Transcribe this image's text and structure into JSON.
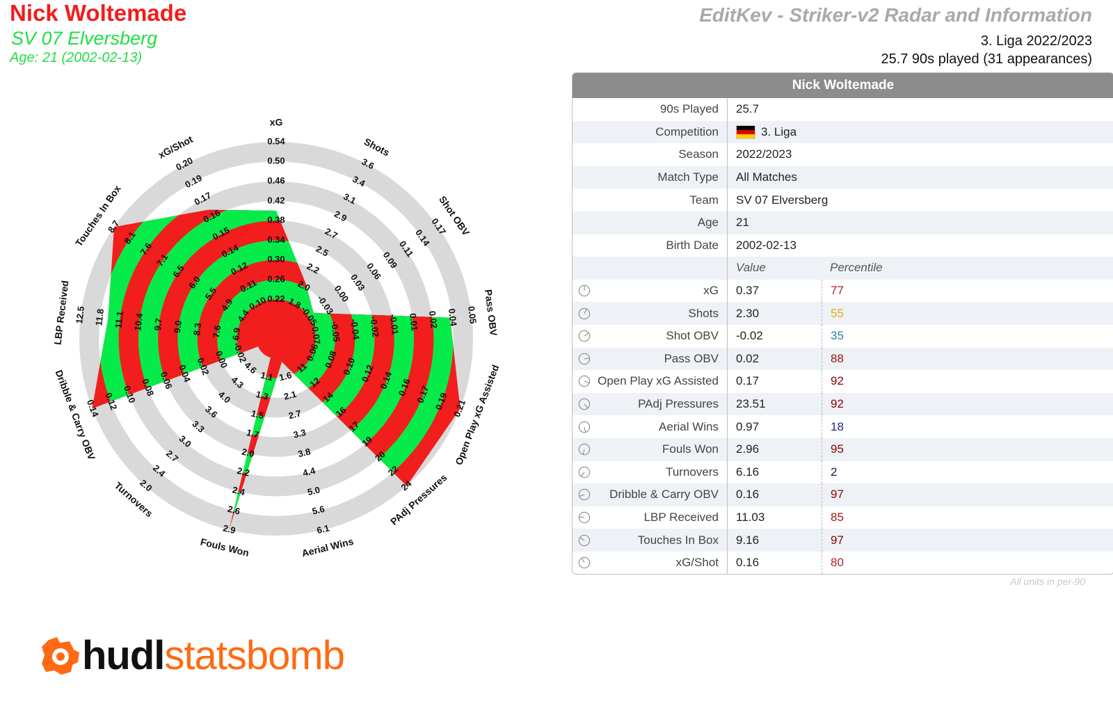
{
  "header": {
    "player_name": "Nick Woltemade",
    "team": "SV 07 Elversberg",
    "age_line": "Age: 21 (2002-02-13)",
    "title": "EditKev - Striker-v2 Radar and Information",
    "league_season": "3. Liga 2022/2023",
    "played": "25.7 90s played (31 appearances)"
  },
  "info": {
    "table_title": "Nick Woltemade",
    "rows": [
      {
        "label": "90s Played",
        "value": "25.7"
      },
      {
        "label": "Competition",
        "value": "3. Liga"
      },
      {
        "label": "Season",
        "value": "2022/2023"
      },
      {
        "label": "Match Type",
        "value": "All Matches"
      },
      {
        "label": "Team",
        "value": "SV 07 Elversberg"
      },
      {
        "label": "Age",
        "value": "21"
      },
      {
        "label": "Birth Date",
        "value": "2002-02-13"
      }
    ],
    "col_value": "Value",
    "col_percentile": "Percentile",
    "units_note": "All units in per-90"
  },
  "colors": {
    "red": "#f21d1d",
    "green": "#05ec4a",
    "ring_grey": "#d9d9d9",
    "flag": [
      "#000000",
      "#dd0000",
      "#ffce00"
    ]
  },
  "chart_data": {
    "type": "radar",
    "metrics": [
      {
        "name": "xG",
        "value": "0.37",
        "percentile": 77,
        "pct_color": "#b22222",
        "ticks": [
          "0.22",
          "0.26",
          "0.30",
          "0.34",
          "0.38",
          "0.42",
          "0.46",
          "0.50",
          "0.54"
        ]
      },
      {
        "name": "Shots",
        "value": "2.30",
        "percentile": 55,
        "pct_color": "#e0b000",
        "ticks": [
          "1.8",
          "2.0",
          "2.2",
          "2.5",
          "2.7",
          "2.9",
          "3.1",
          "3.4",
          "3.6"
        ]
      },
      {
        "name": "Shot OBV",
        "value": "-0.02",
        "percentile": 35,
        "pct_color": "#2a7fa0",
        "ticks": [
          "-0.05",
          "-0.03",
          "0.00",
          "0.03",
          "0.06",
          "0.09",
          "0.11",
          "0.14",
          "0.17"
        ]
      },
      {
        "name": "Pass OBV",
        "value": "0.02",
        "percentile": 88,
        "pct_color": "#9b1111",
        "ticks": [
          "-0.07",
          "-0.05",
          "-0.04",
          "-0.02",
          "-0.01",
          "0.01",
          "0.02",
          "0.04",
          "0.05"
        ]
      },
      {
        "name": "Open Play xG Assisted",
        "value": "0.17",
        "percentile": 92,
        "pct_color": "#8b0000",
        "ticks": [
          "0.06",
          "0.08",
          "0.10",
          "0.12",
          "0.14",
          "0.16",
          "0.17",
          "0.19",
          "0.21"
        ]
      },
      {
        "name": "PAdj Pressures",
        "value": "23.51",
        "percentile": 92,
        "pct_color": "#8b0000",
        "ticks": [
          "11",
          "12",
          "14",
          "16",
          "17",
          "19",
          "20",
          "22",
          "24"
        ]
      },
      {
        "name": "Aerial Wins",
        "value": "0.97",
        "percentile": 18,
        "pct_color": "#1f2a6b",
        "ticks": [
          "1.6",
          "2.1",
          "2.7",
          "3.3",
          "3.8",
          "4.4",
          "5.0",
          "5.6",
          "6.1"
        ]
      },
      {
        "name": "Fouls Won",
        "value": "2.96",
        "percentile": 95,
        "pct_color": "#8b0000",
        "ticks": [
          "1.1",
          "1.3",
          "1.5",
          "1.7",
          "2.0",
          "2.2",
          "2.4",
          "2.6",
          "2.9"
        ]
      },
      {
        "name": "Turnovers",
        "value": "6.16",
        "percentile": 2,
        "pct_color": "#1a1a4a",
        "ticks": [
          "4.6",
          "4.3",
          "4.0",
          "3.6",
          "3.3",
          "3.0",
          "2.7",
          "2.4",
          "2.0"
        ]
      },
      {
        "name": "Dribble & Carry OBV",
        "value": "0.16",
        "percentile": 97,
        "pct_color": "#8b0000",
        "ticks": [
          "-0.02",
          "0.00",
          "0.02",
          "0.04",
          "0.06",
          "0.08",
          "0.10",
          "0.12",
          "0.14"
        ]
      },
      {
        "name": "LBP Received",
        "value": "11.03",
        "percentile": 85,
        "pct_color": "#a01515",
        "ticks": [
          "6.9",
          "7.6",
          "8.3",
          "9.0",
          "9.7",
          "10.4",
          "11.1",
          "11.8",
          "12.5"
        ]
      },
      {
        "name": "Touches In Box",
        "value": "9.16",
        "percentile": 97,
        "pct_color": "#8b0000",
        "ticks": [
          "4.4",
          "4.9",
          "5.5",
          "6.0",
          "6.5",
          "7.1",
          "7.6",
          "8.1",
          "8.7"
        ]
      },
      {
        "name": "xG/Shot",
        "value": "0.16",
        "percentile": 80,
        "pct_color": "#b22222",
        "ticks": [
          "0.10",
          "0.11",
          "0.12",
          "0.14",
          "0.15",
          "0.16",
          "0.17",
          "0.19",
          "0.20"
        ]
      }
    ],
    "polygon_level": [
      6.5,
      3.2,
      2.3,
      8.9,
      10,
      10,
      1.2,
      10,
      0.1,
      10,
      8.6,
      10,
      7.4
    ],
    "rings": 10
  },
  "logo": {
    "hudl": "hudl",
    "statsbomb": "statsbomb",
    "icon": "hudl-statsbomb-logo-icon"
  }
}
